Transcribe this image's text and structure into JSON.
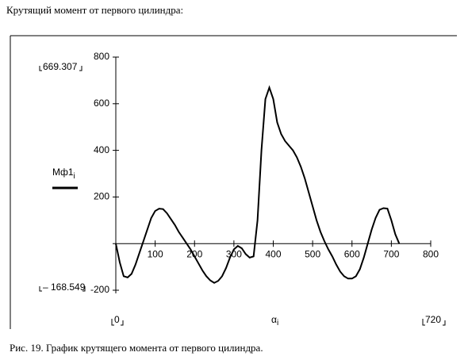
{
  "heading": "Крутящий момент от первого цилиндра:",
  "caption": "Рис. 19. График крутящего момента от первого цилиндра.",
  "chart_data": {
    "type": "line",
    "xlabel": "α",
    "xlabel_sub": "i",
    "x": [
      0,
      10,
      20,
      30,
      40,
      50,
      60,
      70,
      80,
      90,
      100,
      110,
      120,
      130,
      140,
      150,
      160,
      170,
      180,
      190,
      200,
      210,
      220,
      230,
      240,
      250,
      260,
      270,
      280,
      290,
      300,
      310,
      320,
      330,
      340,
      350,
      360,
      370,
      380,
      390,
      400,
      410,
      420,
      430,
      440,
      450,
      460,
      470,
      480,
      490,
      500,
      510,
      520,
      530,
      540,
      550,
      560,
      570,
      580,
      590,
      600,
      610,
      620,
      630,
      640,
      650,
      660,
      670,
      680,
      690,
      700,
      710,
      720
    ],
    "series": [
      {
        "name": "Мф1",
        "name_sub": "i",
        "color": "#000000",
        "values": [
          0,
          -80,
          -140,
          -145,
          -130,
          -90,
          -40,
          10,
          60,
          110,
          140,
          150,
          148,
          130,
          105,
          80,
          50,
          25,
          0,
          -25,
          -55,
          -85,
          -115,
          -140,
          -158,
          -168.549,
          -160,
          -140,
          -105,
          -60,
          -25,
          -10,
          -20,
          -45,
          -60,
          -55,
          100,
          400,
          620,
          669.307,
          620,
          520,
          470,
          440,
          420,
          400,
          370,
          330,
          280,
          220,
          160,
          100,
          50,
          10,
          -25,
          -55,
          -90,
          -120,
          -140,
          -150,
          -150,
          -140,
          -110,
          -60,
          0,
          60,
          110,
          145,
          152,
          150,
          100,
          40,
          0
        ]
      }
    ],
    "xlim": [
      0,
      800
    ],
    "xticks": [
      100,
      200,
      300,
      400,
      500,
      600,
      700,
      800
    ],
    "ylim": [
      -200,
      800
    ],
    "yticks": [
      -200,
      200,
      400,
      600,
      800
    ],
    "y_range_labels": [
      669.307,
      {
        "value": -168.549,
        "label": "– 168.549"
      }
    ],
    "x_range_labels": [
      0,
      720
    ]
  }
}
